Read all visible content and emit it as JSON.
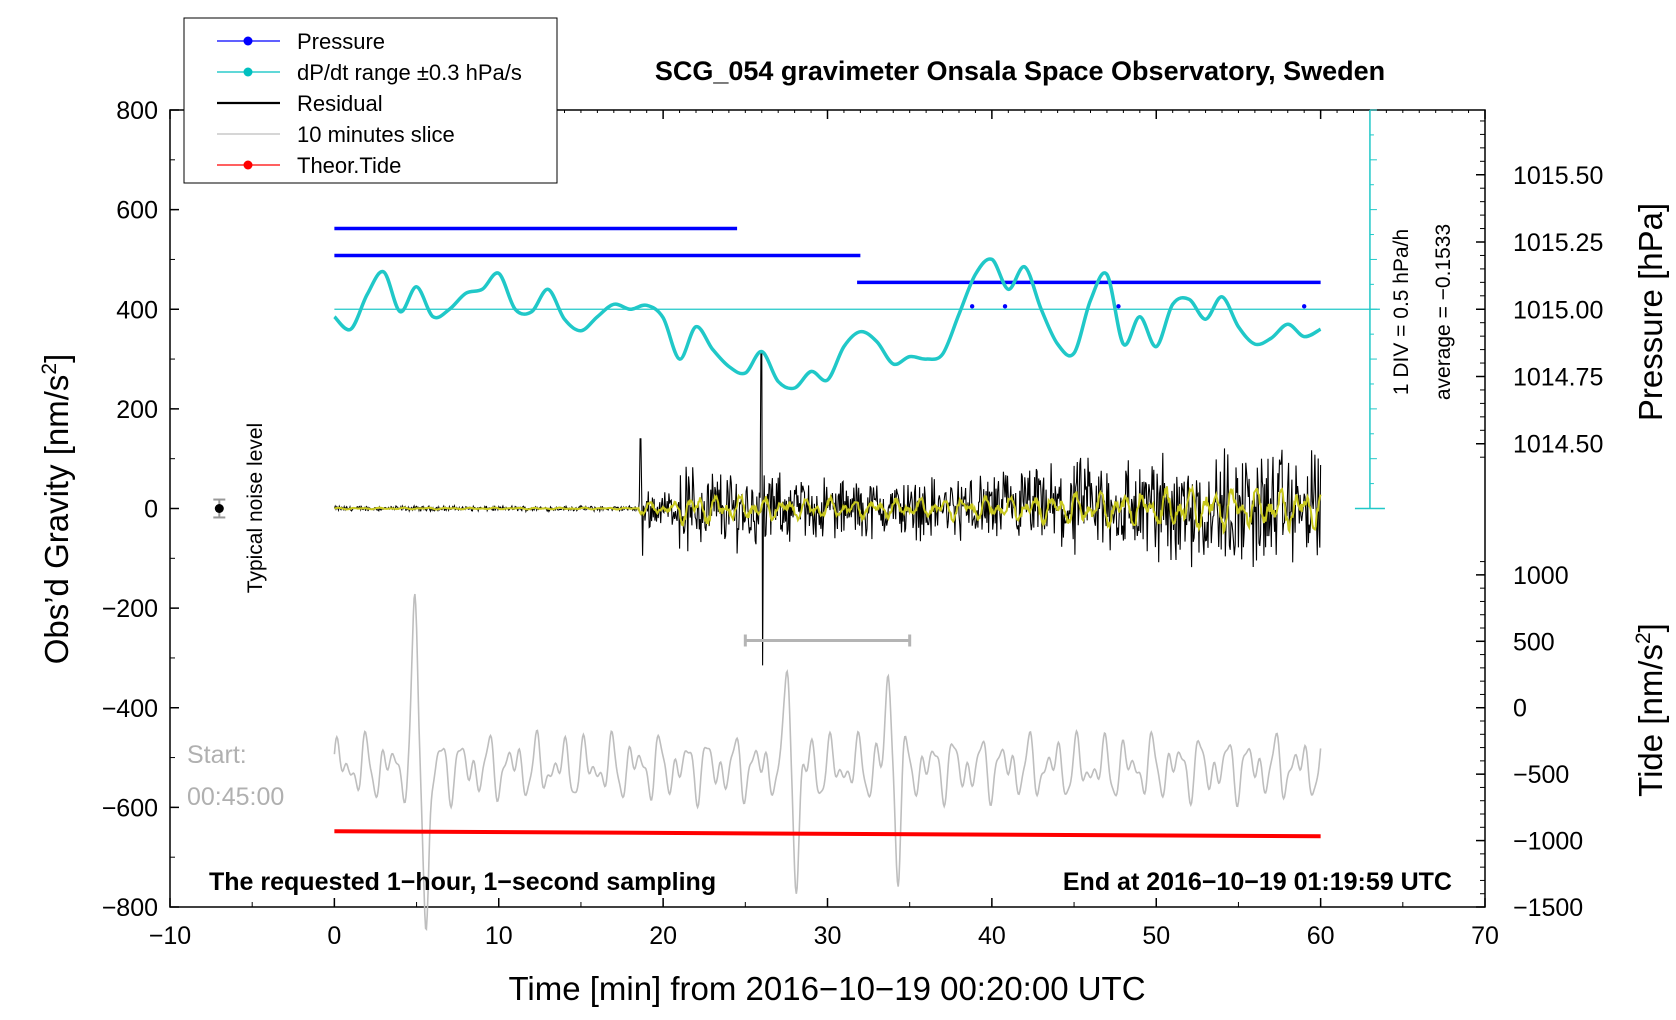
{
  "chart_data": {
    "type": "line",
    "title": "SCG_054 gravimeter Onsala Space Observatory, Sweden",
    "xlabel": "Time [min] from 2016−10−19 00:20:00 UTC",
    "ylabel_left": "Obs’d Gravity [nm/s",
    "ylabel_left_sup": "2",
    "ylabel_left_end": "]",
    "ylabel_right_pressure": "Pressure [hPa]",
    "ylabel_right_tide": "Tide [nm/s",
    "ylabel_right_tide_sup": "2",
    "ylabel_right_tide_end": "]",
    "xlim": [
      -10,
      70
    ],
    "ylim_left": [
      -800,
      800
    ],
    "x_ticks": [
      {
        "v": -10,
        "label": "−10"
      },
      {
        "v": 0,
        "label": "0"
      },
      {
        "v": 10,
        "label": "10"
      },
      {
        "v": 20,
        "label": "20"
      },
      {
        "v": 30,
        "label": "30"
      },
      {
        "v": 40,
        "label": "40"
      },
      {
        "v": 50,
        "label": "50"
      },
      {
        "v": 60,
        "label": "60"
      },
      {
        "v": 70,
        "label": "70"
      }
    ],
    "y_ticks_left": [
      {
        "v": 800,
        "label": "800"
      },
      {
        "v": 600,
        "label": "600"
      },
      {
        "v": 400,
        "label": "400"
      },
      {
        "v": 200,
        "label": "200"
      },
      {
        "v": 0,
        "label": "0"
      },
      {
        "v": -200,
        "label": "−200"
      },
      {
        "v": -400,
        "label": "−400"
      },
      {
        "v": -600,
        "label": "−600"
      },
      {
        "v": -800,
        "label": "−800"
      }
    ],
    "y_ticks_pressure": [
      {
        "v": 1015.5,
        "label": "1015.50"
      },
      {
        "v": 1015.25,
        "label": "1015.25"
      },
      {
        "v": 1015.0,
        "label": "1015.00"
      },
      {
        "v": 1014.75,
        "label": "1014.75"
      },
      {
        "v": 1014.5,
        "label": "1014.50"
      }
    ],
    "pressure_to_left_axis": {
      "p_ref": 1015.0,
      "g_ref": 400,
      "g_per_hPa": 540
    },
    "y_ticks_tide": [
      {
        "v": 1000,
        "label": "1000"
      },
      {
        "v": 500,
        "label": "500"
      },
      {
        "v": 0,
        "label": "0"
      },
      {
        "v": -500,
        "label": "−500"
      },
      {
        "v": -1000,
        "label": "−1000"
      },
      {
        "v": -1500,
        "label": "−1500"
      }
    ],
    "tide_to_left_axis": {
      "t_ref": -1500,
      "g_ref": -800,
      "g_per_unit": 0.2667
    },
    "dpdt_scale": {
      "label1": "1 DIV = 0.5 hPa/h",
      "label2": "average = −0.1533",
      "x": 63,
      "y_bottom": 0,
      "y_top": 800,
      "divisions": 16
    },
    "legend": [
      {
        "label": "Pressure",
        "color": "#0000ff",
        "marker": true
      },
      {
        "label": "dP/dt range ±0.3 hPa/s",
        "color": "#00c0c0",
        "marker": true
      },
      {
        "label": "Residual",
        "color": "#000000",
        "marker": false
      },
      {
        "label": "10 minutes slice",
        "color": "#bebebe",
        "marker": false
      },
      {
        "label": "Theor.Tide",
        "color": "#ff0000",
        "marker": true
      }
    ],
    "series": [
      {
        "name": "Pressure",
        "color": "#0000ff",
        "levels_hPa": [
          1015.3,
          1015.2,
          1015.1
        ],
        "segments": [
          {
            "level": 1015.3,
            "x0": 0,
            "x1": 24.5
          },
          {
            "level": 1015.2,
            "x0": 0,
            "x1": 32
          },
          {
            "level": 1015.1,
            "x0": 31.8,
            "x1": 60
          }
        ]
      },
      {
        "name": "dP/dt range ±0.3 hPa/s",
        "color": "#20c8c8",
        "baseline": 400,
        "x": [
          0,
          1,
          2,
          3,
          4,
          5,
          6,
          7,
          8,
          9,
          10,
          11,
          12,
          13,
          14,
          15,
          16,
          17,
          18,
          19,
          20,
          21,
          22,
          23,
          24,
          25,
          26,
          27,
          28,
          29,
          30,
          31,
          32,
          33,
          34,
          35,
          36,
          37,
          38,
          39,
          40,
          41,
          42,
          43,
          44,
          45,
          46,
          47,
          48,
          49,
          50,
          51,
          52,
          53,
          54,
          55,
          56,
          57,
          58,
          59,
          60
        ],
        "values": [
          385,
          360,
          430,
          475,
          395,
          445,
          385,
          400,
          432,
          440,
          472,
          400,
          395,
          440,
          380,
          357,
          385,
          410,
          400,
          408,
          383,
          300,
          365,
          320,
          285,
          272,
          315,
          255,
          242,
          275,
          258,
          325,
          355,
          335,
          290,
          305,
          300,
          310,
          390,
          470,
          500,
          440,
          485,
          400,
          330,
          312,
          418,
          470,
          330,
          385,
          325,
          410,
          420,
          380,
          425,
          365,
          330,
          342,
          370,
          345,
          360
        ]
      },
      {
        "name": "Residual",
        "color": "#000000"
      },
      {
        "name": "10 minutes slice",
        "color": "#bebebe"
      },
      {
        "name": "Theor.Tide",
        "color": "#ff0000",
        "x": [
          0,
          60
        ],
        "values": [
          -648,
          -658
        ]
      }
    ],
    "noise_marker": {
      "label": "Typical noise level",
      "x": -7,
      "y": 0,
      "err": 18
    },
    "slice_bracket": {
      "x0": 25,
      "x1": 35,
      "y": -265
    },
    "start_label1": "Start:",
    "start_label2": "00:45:00",
    "footer_left": "The requested 1−hour, 1−second sampling",
    "footer_right": "End at 2016−10−19 01:19:59 UTC"
  }
}
